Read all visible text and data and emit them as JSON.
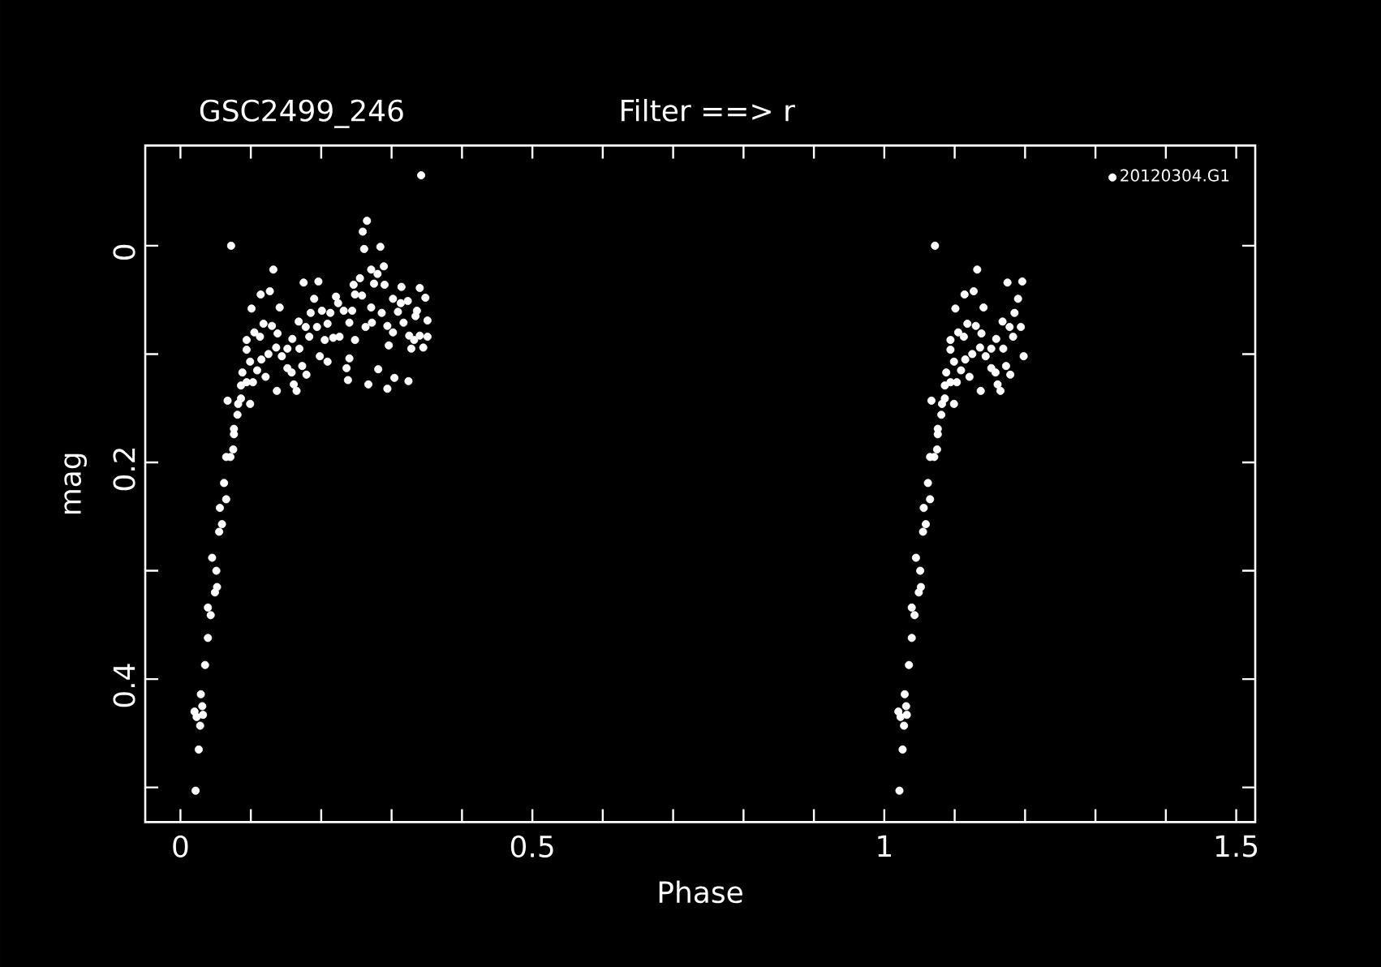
{
  "chart_data": {
    "type": "scatter",
    "title": "GSC2499_246",
    "subtitle": "Filter ==> r",
    "xlabel": "Phase",
    "ylabel": "mag",
    "xlim": [
      -0.05,
      1.527
    ],
    "ylim": [
      0.532,
      -0.0925
    ],
    "xticks": [
      0,
      {
        "value": 0.1,
        "label": null
      },
      {
        "value": 0.2,
        "label": null
      },
      {
        "value": 0.3,
        "label": null
      },
      {
        "value": 0.4,
        "label": null
      },
      0.5,
      {
        "value": 0.6,
        "label": null
      },
      {
        "value": 0.7,
        "label": null
      },
      {
        "value": 0.8,
        "label": null
      },
      {
        "value": 0.9,
        "label": null
      },
      1,
      {
        "value": 1.1,
        "label": null
      },
      {
        "value": 1.2,
        "label": null
      },
      {
        "value": 1.3,
        "label": null
      },
      {
        "value": 1.4,
        "label": null
      },
      1.5
    ],
    "yticks": [
      0,
      {
        "value": 0.1,
        "label": null
      },
      0.2,
      {
        "value": 0.3,
        "label": null
      },
      0.4,
      {
        "value": 0.5,
        "label": null
      }
    ],
    "legend": "top right",
    "marker": "circle",
    "series": [
      {
        "name": "20120304.G1",
        "color": "#ffffff",
        "x": [
          0.0215,
          0.026,
          0.028,
          0.023,
          0.032,
          0.02,
          0.031,
          0.029,
          0.035,
          0.039,
          0.043,
          0.039,
          0.052,
          0.049,
          0.051,
          0.045,
          0.055,
          0.059,
          0.056,
          0.065,
          0.062,
          0.065,
          0.071,
          0.075,
          0.076,
          0.076,
          0.081,
          0.067,
          0.082,
          0.086,
          0.099,
          0.086,
          0.094,
          0.103,
          0.088,
          0.121,
          0.137,
          0.165,
          0.161,
          0.099,
          0.109,
          0.115,
          0.125,
          0.136,
          0.144,
          0.152,
          0.169,
          0.094,
          0.094,
          0.105,
          0.113,
          0.118,
          0.13,
          0.138,
          0.159,
          0.152,
          0.158,
          0.179,
          0.173,
          0.101,
          0.114,
          0.127,
          0.141,
          0.132,
          0.072,
          0.175,
          0.196,
          0.19,
          0.185,
          0.168,
          0.178,
          0.183,
          0.194,
          0.198,
          0.209,
          0.205,
          0.217,
          0.201,
          0.213,
          0.209,
          0.224,
          0.232,
          0.244,
          0.24,
          0.226,
          0.248,
          0.24,
          0.236,
          0.238,
          0.267,
          0.281,
          0.294,
          0.304,
          0.324,
          0.246,
          0.255,
          0.248,
          0.258,
          0.271,
          0.28,
          0.275,
          0.29,
          0.289,
          0.261,
          0.284,
          0.259,
          0.265,
          0.342,
          0.271,
          0.286,
          0.263,
          0.272,
          0.294,
          0.302,
          0.296,
          0.317,
          0.302,
          0.313,
          0.323,
          0.309,
          0.314,
          0.34,
          0.348,
          0.336,
          0.334,
          0.351,
          0.325,
          0.34,
          0.351,
          0.328,
          0.345,
          0.332,
          0.221,
          1.0215,
          1.026,
          1.028,
          1.023,
          1.032,
          1.02,
          1.031,
          1.029,
          1.035,
          1.039,
          1.043,
          1.039,
          1.052,
          1.049,
          1.051,
          1.045,
          1.055,
          1.059,
          1.056,
          1.065,
          1.062,
          1.065,
          1.071,
          1.075,
          1.076,
          1.076,
          1.081,
          1.067,
          1.082,
          1.086,
          1.099,
          1.086,
          1.094,
          1.103,
          1.088,
          1.121,
          1.137,
          1.165,
          1.161,
          1.099,
          1.109,
          1.115,
          1.125,
          1.136,
          1.144,
          1.152,
          1.169,
          1.094,
          1.094,
          1.105,
          1.113,
          1.118,
          1.13,
          1.138,
          1.159,
          1.152,
          1.158,
          1.179,
          1.173,
          1.101,
          1.114,
          1.127,
          1.141,
          1.132,
          1.072,
          1.175,
          1.196,
          1.19,
          1.185,
          1.168,
          1.178,
          1.183,
          1.194,
          1.198
        ],
        "values": [
          0.503,
          0.465,
          0.443,
          0.435,
          0.433,
          0.43,
          0.425,
          0.414,
          0.387,
          0.362,
          0.341,
          0.334,
          0.315,
          0.32,
          0.3,
          0.288,
          0.264,
          0.257,
          0.242,
          0.234,
          0.219,
          0.195,
          0.195,
          0.188,
          0.174,
          0.169,
          0.156,
          0.143,
          0.146,
          0.141,
          0.146,
          0.129,
          0.126,
          0.126,
          0.117,
          0.121,
          0.134,
          0.134,
          0.128,
          0.107,
          0.115,
          0.105,
          0.1,
          0.094,
          0.102,
          0.095,
          0.095,
          0.087,
          0.096,
          0.08,
          0.084,
          0.072,
          0.074,
          0.081,
          0.086,
          0.113,
          0.117,
          0.119,
          0.111,
          0.058,
          0.045,
          0.042,
          0.057,
          0.022,
          0.0,
          0.034,
          0.033,
          0.049,
          0.062,
          0.07,
          0.075,
          0.084,
          0.075,
          0.102,
          0.107,
          0.087,
          0.085,
          0.06,
          0.062,
          0.072,
          0.053,
          0.06,
          0.06,
          0.071,
          0.084,
          0.087,
          0.104,
          0.113,
          0.124,
          0.128,
          0.114,
          0.132,
          0.122,
          0.125,
          0.036,
          0.03,
          0.045,
          0.046,
          0.022,
          0.026,
          0.035,
          0.036,
          0.019,
          0.003,
          0.001,
          -0.013,
          -0.023,
          -0.065,
          0.057,
          0.062,
          0.075,
          0.071,
          0.074,
          0.08,
          0.092,
          0.071,
          0.049,
          0.053,
          0.051,
          0.061,
          0.038,
          0.039,
          0.048,
          0.06,
          0.065,
          0.069,
          0.083,
          0.083,
          0.084,
          0.095,
          0.094,
          0.087,
          0.047,
          0.503,
          0.465,
          0.443,
          0.435,
          0.433,
          0.43,
          0.425,
          0.414,
          0.387,
          0.362,
          0.341,
          0.334,
          0.315,
          0.32,
          0.3,
          0.288,
          0.264,
          0.257,
          0.242,
          0.234,
          0.219,
          0.195,
          0.195,
          0.188,
          0.174,
          0.169,
          0.156,
          0.143,
          0.146,
          0.141,
          0.146,
          0.129,
          0.126,
          0.126,
          0.117,
          0.121,
          0.134,
          0.134,
          0.128,
          0.107,
          0.115,
          0.105,
          0.1,
          0.094,
          0.102,
          0.095,
          0.095,
          0.087,
          0.096,
          0.08,
          0.084,
          0.072,
          0.074,
          0.081,
          0.086,
          0.113,
          0.117,
          0.119,
          0.111,
          0.058,
          0.045,
          0.042,
          0.057,
          0.022,
          0.0,
          0.034,
          0.033,
          0.049,
          0.062,
          0.07,
          0.075,
          0.084,
          0.075,
          0.102
        ]
      }
    ]
  }
}
